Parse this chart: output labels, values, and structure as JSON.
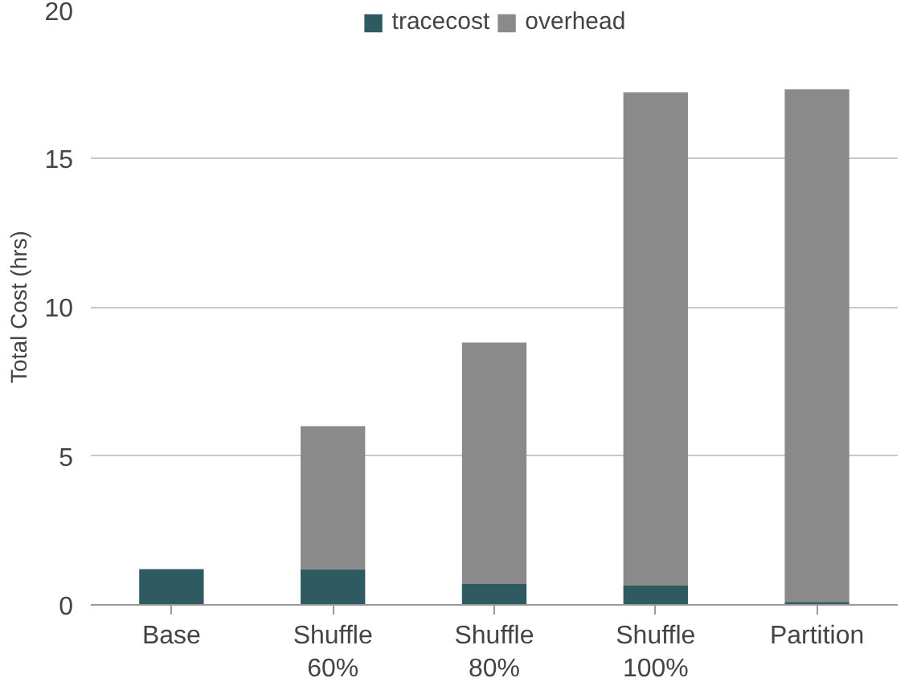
{
  "chart_data": {
    "type": "bar",
    "stacked": true,
    "ylabel": "Total Cost (hrs)",
    "categories": [
      "Base",
      "Shuffle\n60%",
      "Shuffle\n80%",
      "Shuffle\n100%",
      "Partition"
    ],
    "series": [
      {
        "name": "tracecost",
        "color": "#2f5a62",
        "values": [
          1.2,
          1.2,
          0.7,
          0.65,
          0.1
        ]
      },
      {
        "name": "overhead",
        "color": "#8a8a8a",
        "values": [
          0,
          4.8,
          8.1,
          16.55,
          17.2
        ]
      }
    ],
    "ylim": [
      0,
      20
    ],
    "yticks": [
      0,
      5,
      10,
      15,
      20
    ],
    "grid": "y",
    "legend": "top"
  }
}
